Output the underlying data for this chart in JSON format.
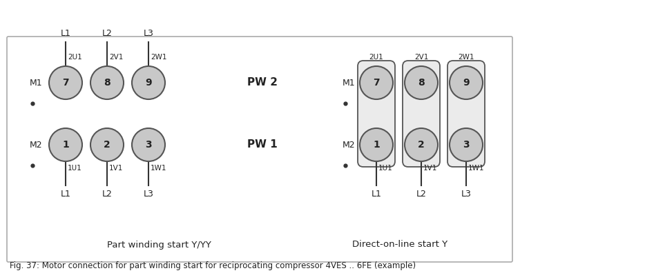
{
  "fig_width": 9.34,
  "fig_height": 3.96,
  "dpi": 100,
  "background_color": "#ffffff",
  "border_color": "#aaaaaa",
  "circle_fill": "#c8c8c8",
  "circle_edge": "#555555",
  "rect_fill": "#ebebeb",
  "rect_edge": "#555555",
  "caption": "Fig. 37: Motor connection for part winding start for reciprocating compressor 4VES .. 6FE (example)",
  "left_label": "Part winding start Y/YY",
  "right_label": "Direct-on-line start Y",
  "pw2_label": "PW 2",
  "pw1_label": "PW 1",
  "top_circle_nums": [
    "7",
    "8",
    "9"
  ],
  "bot_circle_nums": [
    "1",
    "2",
    "3"
  ],
  "top_terminal_labels": [
    "2U1",
    "2V1",
    "2W1"
  ],
  "bot_terminal_labels": [
    "1U1",
    "1V1",
    "1W1"
  ],
  "top_L_labels": [
    "L1",
    "L2",
    "L3"
  ],
  "bot_L_labels": [
    "L1",
    "L2",
    "L3"
  ],
  "M1_label": "M1",
  "M2_label": "M2",
  "dot_color": "#333333",
  "line_color": "#333333",
  "text_color": "#222222"
}
